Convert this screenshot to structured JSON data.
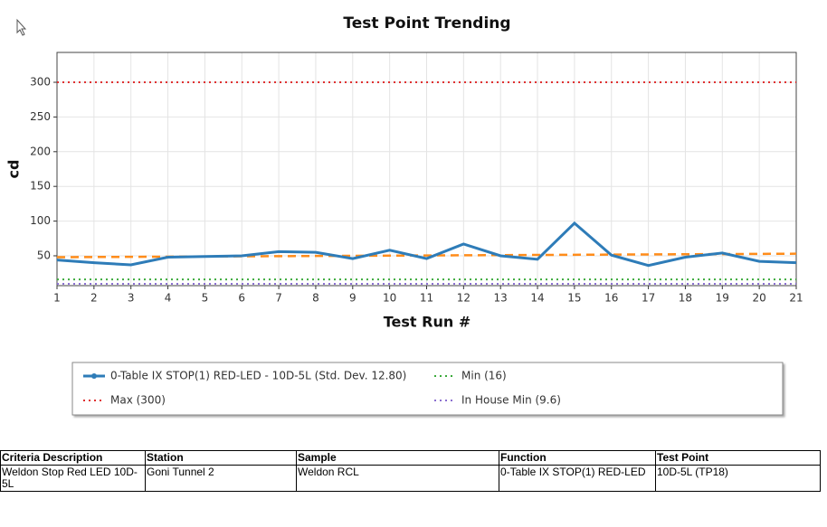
{
  "chart_data": {
    "type": "line",
    "title": "Test Point Trending",
    "x_label": "Test Run #",
    "y_label": "cd",
    "x": [
      1,
      2,
      3,
      4,
      5,
      6,
      7,
      8,
      9,
      10,
      11,
      12,
      13,
      14,
      15,
      16,
      17,
      18,
      19,
      20,
      21
    ],
    "xlim": [
      1,
      21
    ],
    "xticks": [
      1,
      2,
      3,
      4,
      5,
      6,
      7,
      8,
      9,
      10,
      11,
      12,
      13,
      14,
      15,
      16,
      17,
      18,
      19,
      20,
      21
    ],
    "ylim": [
      7,
      343
    ],
    "yticks": [
      50,
      100,
      150,
      200,
      250,
      300
    ],
    "grid": true,
    "series": [
      {
        "name": "0-Table IX STOP(1) RED-LED - 10D-5L (Std. Dev. 12.80)",
        "color": "#2e7cb8",
        "values": [
          44,
          40,
          37,
          48,
          49,
          50,
          56,
          55,
          46,
          58,
          46,
          67,
          50,
          45,
          97,
          51,
          36,
          48,
          54,
          42,
          40
        ]
      }
    ],
    "trend_line": {
      "x": [
        1,
        21
      ],
      "values": [
        48,
        53
      ],
      "color": "#ff8c1a"
    },
    "reference_lines": [
      {
        "name": "Min (16)",
        "value": 16,
        "color": "#3aaa3a"
      },
      {
        "name": "Max (300)",
        "value": 300,
        "color": "#e03030"
      },
      {
        "name": "In House Min (9.6)",
        "value": 9.6,
        "color": "#8a6fd0"
      }
    ]
  },
  "table": {
    "headers": [
      "Criteria Description",
      "Station",
      "Sample",
      "Function",
      "Test Point"
    ],
    "rows": [
      [
        "Weldon Stop Red LED 10D-5L",
        "Goni Tunnel 2",
        "Weldon RCL",
        "0-Table IX STOP(1) RED-LED",
        "10D-5L (TP18)"
      ]
    ]
  }
}
